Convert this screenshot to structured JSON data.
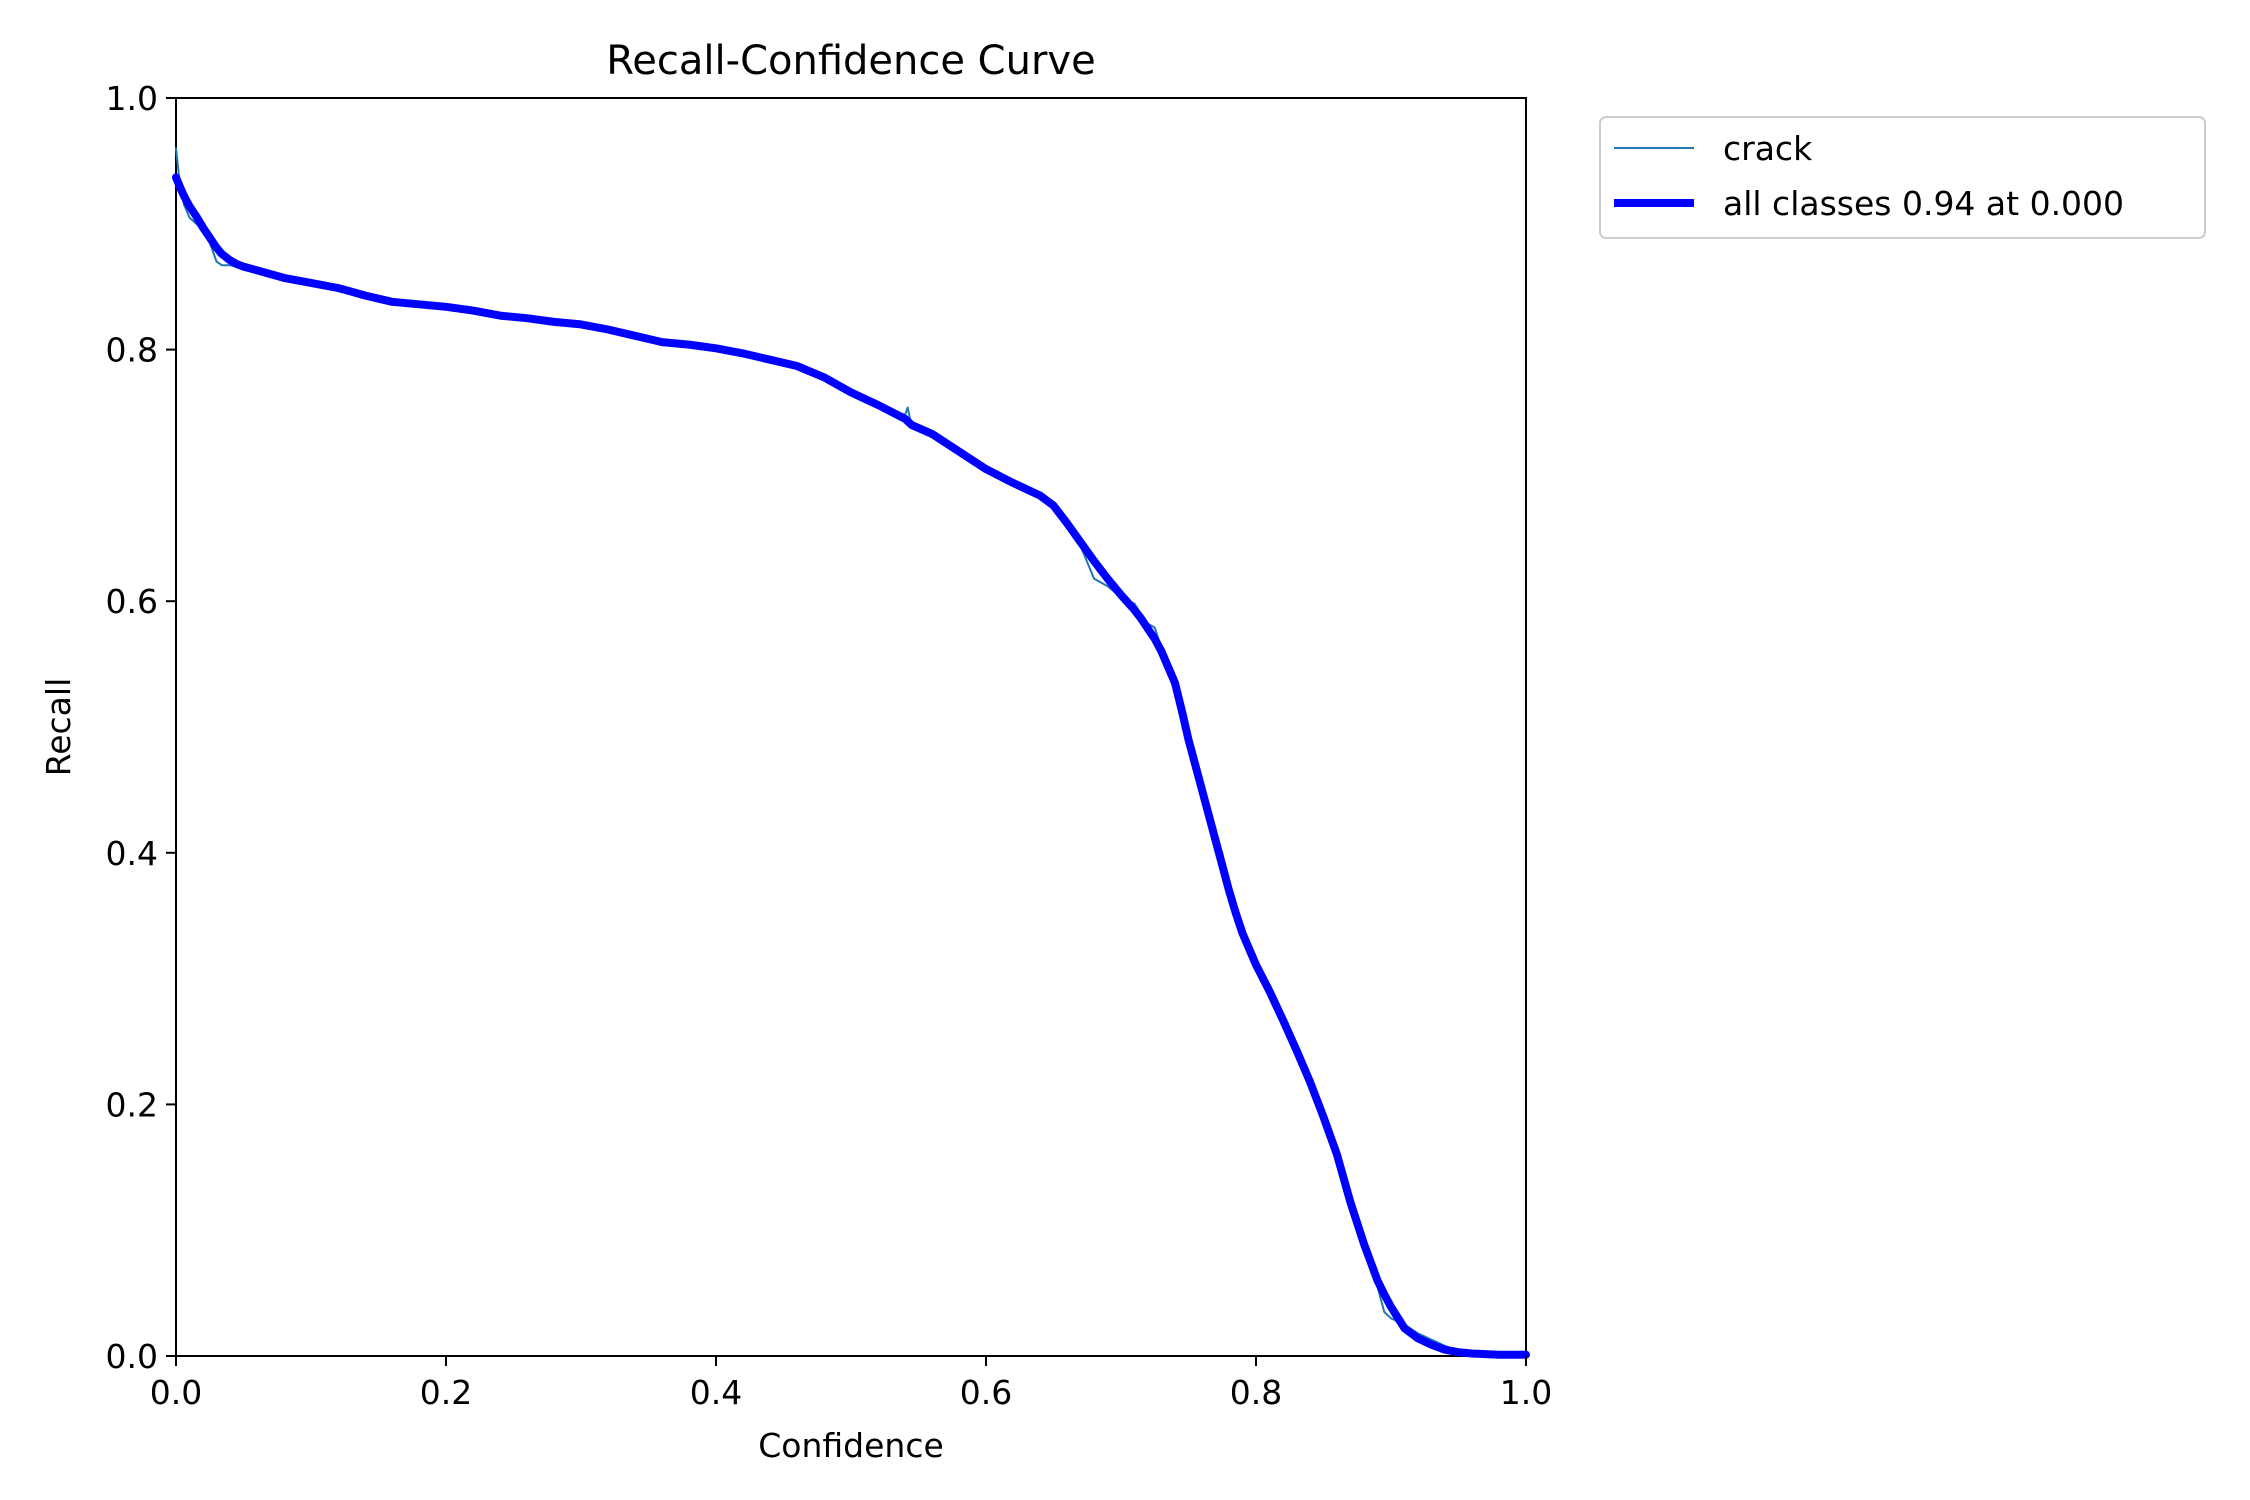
{
  "chart_data": {
    "type": "line",
    "title": "Recall-Confidence Curve",
    "xlabel": "Confidence",
    "ylabel": "Recall",
    "xlim": [
      0,
      1
    ],
    "ylim": [
      0,
      1
    ],
    "xticks": [
      "0.0",
      "0.2",
      "0.4",
      "0.6",
      "0.8",
      "1.0"
    ],
    "yticks": [
      "0.0",
      "0.2",
      "0.4",
      "0.6",
      "0.8",
      "1.0"
    ],
    "grid": false,
    "legend_position": "outside-top-right",
    "series": [
      {
        "name": "crack",
        "color": "#1f77b4",
        "line_weight": "thin",
        "x": [
          0.0,
          0.003,
          0.006,
          0.01,
          0.015,
          0.02,
          0.025,
          0.03,
          0.034,
          0.04,
          0.045,
          0.05,
          0.06,
          0.07,
          0.08,
          0.1,
          0.12,
          0.13,
          0.14,
          0.16,
          0.18,
          0.2,
          0.22,
          0.24,
          0.26,
          0.28,
          0.3,
          0.32,
          0.34,
          0.36,
          0.38,
          0.4,
          0.42,
          0.44,
          0.46,
          0.48,
          0.5,
          0.52,
          0.54,
          0.542,
          0.545,
          0.56,
          0.58,
          0.6,
          0.62,
          0.64,
          0.65,
          0.66,
          0.67,
          0.68,
          0.69,
          0.7,
          0.71,
          0.715,
          0.72,
          0.725,
          0.73,
          0.74,
          0.745,
          0.75,
          0.76,
          0.77,
          0.775,
          0.78,
          0.785,
          0.79,
          0.8,
          0.81,
          0.82,
          0.83,
          0.84,
          0.85,
          0.86,
          0.87,
          0.88,
          0.89,
          0.895,
          0.9,
          0.91,
          0.92,
          0.93,
          0.94,
          0.95,
          0.96,
          0.98,
          1.0
        ],
        "y": [
          0.96,
          0.93,
          0.915,
          0.905,
          0.9,
          0.895,
          0.885,
          0.87,
          0.867,
          0.867,
          0.866,
          0.865,
          0.862,
          0.859,
          0.857,
          0.853,
          0.849,
          0.848,
          0.845,
          0.84,
          0.837,
          0.835,
          0.831,
          0.827,
          0.826,
          0.823,
          0.82,
          0.817,
          0.81,
          0.806,
          0.804,
          0.801,
          0.797,
          0.792,
          0.787,
          0.778,
          0.766,
          0.756,
          0.748,
          0.754,
          0.738,
          0.733,
          0.719,
          0.705,
          0.692,
          0.682,
          0.673,
          0.658,
          0.644,
          0.618,
          0.612,
          0.603,
          0.598,
          0.589,
          0.582,
          0.579,
          0.562,
          0.538,
          0.518,
          0.49,
          0.45,
          0.41,
          0.4,
          0.37,
          0.35,
          0.335,
          0.31,
          0.29,
          0.267,
          0.243,
          0.22,
          0.19,
          0.16,
          0.12,
          0.085,
          0.055,
          0.035,
          0.03,
          0.025,
          0.018,
          0.013,
          0.008,
          0.004,
          0.002,
          0.001,
          0.001
        ]
      },
      {
        "name": "all classes 0.94 at 0.000",
        "color": "#0000ff",
        "line_weight": "thick",
        "x": [
          0.0,
          0.003,
          0.006,
          0.01,
          0.015,
          0.02,
          0.025,
          0.03,
          0.034,
          0.04,
          0.045,
          0.05,
          0.06,
          0.07,
          0.08,
          0.1,
          0.12,
          0.13,
          0.14,
          0.16,
          0.18,
          0.2,
          0.22,
          0.24,
          0.26,
          0.28,
          0.3,
          0.32,
          0.34,
          0.36,
          0.38,
          0.4,
          0.42,
          0.44,
          0.46,
          0.48,
          0.5,
          0.52,
          0.54,
          0.545,
          0.56,
          0.58,
          0.6,
          0.62,
          0.64,
          0.65,
          0.66,
          0.67,
          0.68,
          0.69,
          0.7,
          0.71,
          0.715,
          0.72,
          0.725,
          0.73,
          0.74,
          0.745,
          0.75,
          0.76,
          0.77,
          0.775,
          0.78,
          0.785,
          0.79,
          0.8,
          0.81,
          0.82,
          0.83,
          0.84,
          0.85,
          0.86,
          0.87,
          0.88,
          0.89,
          0.895,
          0.9,
          0.91,
          0.92,
          0.93,
          0.94,
          0.95,
          0.96,
          0.98,
          1.0
        ],
        "y": [
          0.937,
          0.929,
          0.922,
          0.914,
          0.906,
          0.897,
          0.889,
          0.881,
          0.876,
          0.871,
          0.868,
          0.866,
          0.863,
          0.86,
          0.857,
          0.853,
          0.849,
          0.846,
          0.843,
          0.838,
          0.836,
          0.834,
          0.831,
          0.827,
          0.825,
          0.822,
          0.82,
          0.816,
          0.811,
          0.806,
          0.804,
          0.801,
          0.797,
          0.792,
          0.787,
          0.778,
          0.766,
          0.756,
          0.745,
          0.74,
          0.733,
          0.719,
          0.705,
          0.694,
          0.684,
          0.676,
          0.662,
          0.647,
          0.632,
          0.618,
          0.605,
          0.593,
          0.586,
          0.578,
          0.57,
          0.56,
          0.535,
          0.513,
          0.49,
          0.45,
          0.41,
          0.39,
          0.37,
          0.352,
          0.336,
          0.311,
          0.29,
          0.267,
          0.243,
          0.218,
          0.19,
          0.16,
          0.122,
          0.089,
          0.06,
          0.049,
          0.039,
          0.022,
          0.014,
          0.009,
          0.005,
          0.003,
          0.002,
          0.001,
          0.001
        ]
      }
    ]
  }
}
